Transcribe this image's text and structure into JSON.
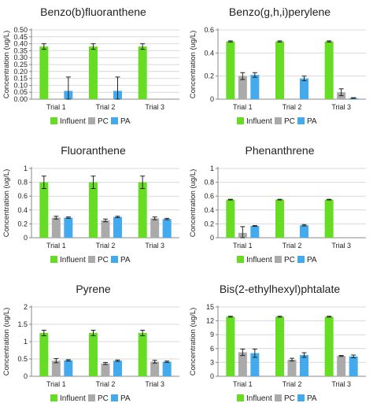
{
  "colors": {
    "Influent": "#66dd22",
    "PC": "#aaaaaa",
    "PA": "#44aaee",
    "axis": "#888888",
    "grid": "#d9d9d9",
    "text": "#222222"
  },
  "chart_data": [
    {
      "type": "bar",
      "title": "Benzo(b)fluoranthene",
      "ylabel": "Concentration (ug/L)",
      "categories": [
        "Trial 1",
        "Trial 2",
        "Trial 3"
      ],
      "ylim": [
        0,
        0.5
      ],
      "yticks": [
        "0.00",
        "0.05",
        "0.10",
        "0.15",
        "0.20",
        "0.25",
        "0.30",
        "0.35",
        "0.40",
        "0.45",
        "0.50"
      ],
      "grid": true,
      "legend": "bottom",
      "series": [
        {
          "name": "Influent",
          "values": [
            0.38,
            0.38,
            0.38
          ],
          "errors": [
            0.02,
            0.02,
            0.02
          ]
        },
        {
          "name": "PC",
          "values": [
            null,
            null,
            null
          ],
          "errors": [
            null,
            null,
            null
          ]
        },
        {
          "name": "PA",
          "values": [
            0.06,
            0.06,
            null
          ],
          "errors": [
            0.1,
            0.1,
            null
          ]
        }
      ]
    },
    {
      "type": "bar",
      "title": "Benzo(g,h,i)perylene",
      "ylabel": "Concentration (ug/L)",
      "categories": [
        "Trial 1",
        "Trial 2",
        "Trial 3"
      ],
      "ylim": [
        0,
        0.6
      ],
      "yticks": [
        "0",
        "0.2",
        "0.4",
        "0.6"
      ],
      "grid": true,
      "legend": "bottom",
      "series": [
        {
          "name": "Influent",
          "values": [
            0.5,
            0.5,
            0.5
          ],
          "errors": [
            0.005,
            0.005,
            0.005
          ]
        },
        {
          "name": "PC",
          "values": [
            0.2,
            null,
            0.06
          ],
          "errors": [
            0.03,
            null,
            0.03
          ]
        },
        {
          "name": "PA",
          "values": [
            0.21,
            0.18,
            0.01
          ],
          "errors": [
            0.02,
            0.02,
            0.003
          ]
        }
      ]
    },
    {
      "type": "bar",
      "title": "Fluoranthene",
      "ylabel": "Concentration (ug/L)",
      "categories": [
        "Trial 1",
        "Trial 2",
        "Trial 3"
      ],
      "ylim": [
        0,
        1
      ],
      "yticks": [
        "0",
        "0.2",
        "0.4",
        "0.6",
        "0.8",
        "1"
      ],
      "grid": true,
      "legend": "bottom",
      "series": [
        {
          "name": "Influent",
          "values": [
            0.8,
            0.8,
            0.8
          ],
          "errors": [
            0.09,
            0.09,
            0.09
          ]
        },
        {
          "name": "PC",
          "values": [
            0.29,
            0.25,
            0.28
          ],
          "errors": [
            0.02,
            0.02,
            0.02
          ]
        },
        {
          "name": "PA",
          "values": [
            0.29,
            0.3,
            0.27
          ],
          "errors": [
            0.01,
            0.01,
            0.01
          ]
        }
      ]
    },
    {
      "type": "bar",
      "title": "Phenanthrene",
      "ylabel": "Concentration (ug/L)",
      "categories": [
        "Trial 1",
        "Trial 2",
        "Trial 3"
      ],
      "ylim": [
        0,
        1
      ],
      "yticks": [
        "0",
        "0.2",
        "0.4",
        "0.6",
        "0.8",
        "1"
      ],
      "grid": true,
      "legend": "bottom",
      "series": [
        {
          "name": "Influent",
          "values": [
            0.55,
            0.55,
            0.55
          ],
          "errors": [
            0.005,
            0.005,
            0.005
          ]
        },
        {
          "name": "PC",
          "values": [
            0.07,
            null,
            null
          ],
          "errors": [
            0.09,
            null,
            null
          ]
        },
        {
          "name": "PA",
          "values": [
            0.17,
            0.18,
            null
          ],
          "errors": [
            0.005,
            0.01,
            null
          ]
        }
      ]
    },
    {
      "type": "bar",
      "title": "Pyrene",
      "ylabel": "Concentration (ug/L)",
      "categories": [
        "Trial 1",
        "Trial 2",
        "Trial 3"
      ],
      "ylim": [
        0,
        2
      ],
      "yticks": [
        "0",
        "0.5",
        "1",
        "1.5",
        "2"
      ],
      "grid": true,
      "legend": "bottom",
      "series": [
        {
          "name": "Influent",
          "values": [
            1.25,
            1.25,
            1.25
          ],
          "errors": [
            0.08,
            0.08,
            0.08
          ]
        },
        {
          "name": "PC",
          "values": [
            0.45,
            0.37,
            0.42
          ],
          "errors": [
            0.06,
            0.03,
            0.04
          ]
        },
        {
          "name": "PA",
          "values": [
            0.46,
            0.45,
            0.42
          ],
          "errors": [
            0.02,
            0.02,
            0.02
          ]
        }
      ]
    },
    {
      "type": "bar",
      "title": "Bis(2-ethylhexyl)phtalate",
      "ylabel": "Concentration (ug/L)",
      "categories": [
        "Trial 1",
        "Trial 2",
        "Trial 3"
      ],
      "ylim": [
        0,
        15
      ],
      "yticks": [
        "0",
        "3",
        "6",
        "9",
        "12",
        "15"
      ],
      "grid": true,
      "legend": "bottom",
      "series": [
        {
          "name": "Influent",
          "values": [
            12.9,
            12.9,
            12.9
          ],
          "errors": [
            0.1,
            0.1,
            0.1
          ]
        },
        {
          "name": "PC",
          "values": [
            5.2,
            3.6,
            4.4
          ],
          "errors": [
            0.7,
            0.3,
            0.1
          ]
        },
        {
          "name": "PA",
          "values": [
            5.0,
            4.6,
            4.3
          ],
          "errors": [
            0.9,
            0.5,
            0.3
          ]
        }
      ]
    }
  ]
}
